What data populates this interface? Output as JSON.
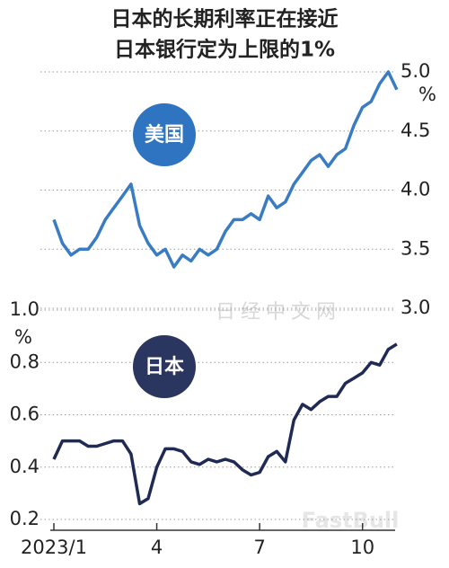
{
  "title": [
    "日本的长期利率正在接近",
    "日本银行定为上限的1%"
  ],
  "watermarks": [
    "日经中文网",
    "FastBull"
  ],
  "chart_data": [
    {
      "type": "line",
      "unit": "%",
      "yaxis_side": "right",
      "grid": true,
      "series": [
        {
          "name": "美国",
          "color": "#3a7cc4",
          "badge_color": "#2f74c0",
          "values": [
            3.75,
            3.55,
            3.45,
            3.5,
            3.5,
            3.6,
            3.75,
            3.85,
            3.95,
            4.05,
            3.7,
            3.55,
            3.45,
            3.5,
            3.35,
            3.45,
            3.4,
            3.5,
            3.45,
            3.5,
            3.65,
            3.75,
            3.75,
            3.8,
            3.75,
            3.95,
            3.85,
            3.9,
            4.05,
            4.15,
            4.25,
            4.3,
            4.2,
            4.3,
            4.35,
            4.55,
            4.7,
            4.75,
            4.9,
            5.0,
            4.85
          ]
        }
      ],
      "x": [
        0,
        0.25,
        0.5,
        0.75,
        1,
        1.25,
        1.5,
        1.75,
        2,
        2.25,
        2.5,
        2.75,
        3,
        3.25,
        3.5,
        3.75,
        4,
        4.25,
        4.5,
        4.75,
        5,
        5.25,
        5.5,
        5.75,
        6,
        6.25,
        6.5,
        6.75,
        7,
        7.25,
        7.5,
        7.75,
        8,
        8.25,
        8.5,
        8.75,
        9,
        9.25,
        9.5,
        9.75,
        10
      ],
      "xlim": [
        0,
        10.5
      ],
      "ylim": [
        3.0,
        5.0
      ],
      "yticks": [
        {
          "value": 3,
          "label": "3.0"
        },
        3.5,
        {
          "value": 4,
          "label": "4.0"
        },
        4.5,
        {
          "value": 5,
          "label": "5.0"
        }
      ]
    },
    {
      "type": "line",
      "unit": "%",
      "yaxis_side": "left",
      "grid": true,
      "series": [
        {
          "name": "日本",
          "color": "#1f2a55",
          "badge_color": "#2a3560",
          "values": [
            0.43,
            0.5,
            0.5,
            0.5,
            0.48,
            0.48,
            0.49,
            0.5,
            0.5,
            0.45,
            0.26,
            0.28,
            0.4,
            0.47,
            0.47,
            0.46,
            0.42,
            0.41,
            0.43,
            0.42,
            0.43,
            0.42,
            0.39,
            0.37,
            0.38,
            0.44,
            0.46,
            0.42,
            0.58,
            0.64,
            0.62,
            0.65,
            0.67,
            0.67,
            0.72,
            0.74,
            0.76,
            0.8,
            0.79,
            0.85,
            0.87
          ]
        }
      ],
      "x": [
        0,
        0.25,
        0.5,
        0.75,
        1,
        1.25,
        1.5,
        1.75,
        2,
        2.25,
        2.5,
        2.75,
        3,
        3.25,
        3.5,
        3.75,
        4,
        4.25,
        4.5,
        4.75,
        5,
        5.25,
        5.5,
        5.75,
        6,
        6.25,
        6.5,
        6.75,
        7,
        7.25,
        7.5,
        7.75,
        8,
        8.25,
        8.5,
        8.75,
        9,
        9.25,
        9.5,
        9.75,
        10
      ],
      "xlim": [
        0,
        10.5
      ],
      "xticks": [
        {
          "value": 0,
          "label": "2023/1"
        },
        {
          "value": 3,
          "label": "4"
        },
        {
          "value": 6,
          "label": "7"
        },
        {
          "value": 9,
          "label": "10"
        }
      ],
      "ylim": [
        0.2,
        1.0
      ],
      "yticks": [
        0.2,
        0.4,
        0.6,
        0.8,
        {
          "value": 1,
          "label": "1.0"
        }
      ]
    }
  ]
}
